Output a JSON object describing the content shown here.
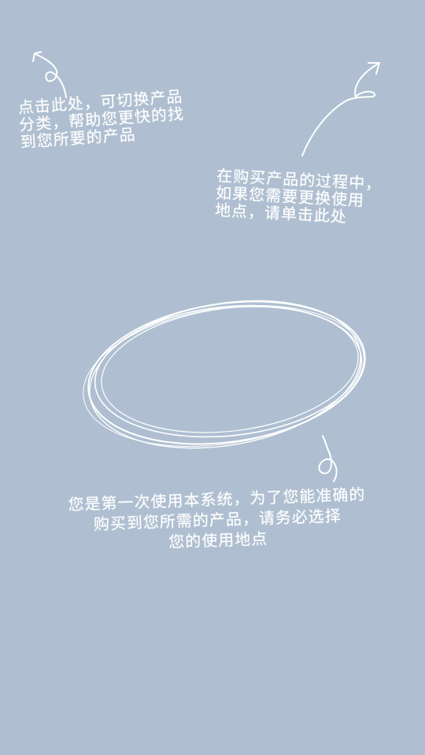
{
  "overlay": {
    "background_color": "#afbfd1",
    "ink_color": "#ffffff",
    "category_tip": {
      "lines": [
        "点击此处，可切换产品",
        "分类，帮助您更快的找",
        "到您所要的产品"
      ]
    },
    "location_tip": {
      "lines": [
        "在购买产品的过程中，",
        "如果您需要更换使用",
        "地点，请单击此处"
      ]
    },
    "first_use_tip": {
      "lines": [
        "您是第一次使用本系统，为了您能准确的",
        "购买到您所需的产品，请务必选择",
        "您的使用地点"
      ]
    },
    "icons": [
      "arrow-up-left-icon",
      "arrow-up-right-icon",
      "squiggle-pointer-icon",
      "hand-drawn-circle-icon"
    ]
  }
}
